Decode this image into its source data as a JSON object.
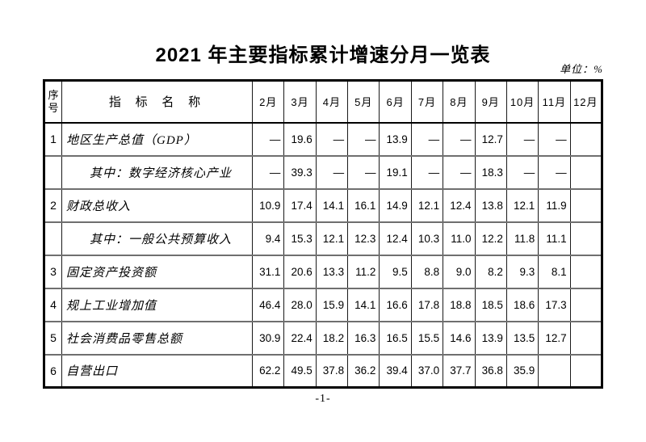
{
  "page": {
    "title": "2021 年主要指标累计增速分月一览表",
    "unit_label": "单位：%",
    "page_number": "-1-"
  },
  "table": {
    "headers": {
      "serial": "序号",
      "indicator": "指 标 名 称",
      "months": [
        "2月",
        "3月",
        "4月",
        "5月",
        "6月",
        "7月",
        "8月",
        "9月",
        "10月",
        "11月",
        "12月"
      ]
    },
    "rows": [
      {
        "no": "1",
        "name": "地区生产总值（GDP）",
        "indent": false,
        "values": [
          "—",
          "19.6",
          "—",
          "—",
          "13.9",
          "—",
          "—",
          "12.7",
          "—",
          "—",
          ""
        ]
      },
      {
        "no": "",
        "name": "其中：数字经济核心产业",
        "indent": true,
        "values": [
          "—",
          "39.3",
          "—",
          "—",
          "19.1",
          "—",
          "—",
          "18.3",
          "—",
          "—",
          ""
        ]
      },
      {
        "no": "2",
        "name": "财政总收入",
        "indent": false,
        "values": [
          "10.9",
          "17.4",
          "14.1",
          "16.1",
          "14.9",
          "12.1",
          "12.4",
          "13.8",
          "12.1",
          "11.9",
          ""
        ]
      },
      {
        "no": "",
        "name": "其中：一般公共预算收入",
        "indent": true,
        "values": [
          "9.4",
          "15.3",
          "12.1",
          "12.3",
          "12.4",
          "10.3",
          "11.0",
          "12.2",
          "11.8",
          "11.1",
          ""
        ]
      },
      {
        "no": "3",
        "name": "固定资产投资额",
        "indent": false,
        "values": [
          "31.1",
          "20.6",
          "13.3",
          "11.2",
          "9.5",
          "8.8",
          "9.0",
          "8.2",
          "9.3",
          "8.1",
          ""
        ]
      },
      {
        "no": "4",
        "name": "规上工业增加值",
        "indent": false,
        "values": [
          "46.4",
          "28.0",
          "15.9",
          "14.1",
          "16.6",
          "17.8",
          "18.8",
          "18.5",
          "18.6",
          "17.3",
          ""
        ]
      },
      {
        "no": "5",
        "name": "社会消费品零售总额",
        "indent": false,
        "values": [
          "30.9",
          "22.4",
          "18.2",
          "16.3",
          "16.5",
          "15.5",
          "14.6",
          "13.9",
          "13.5",
          "12.7",
          ""
        ]
      },
      {
        "no": "6",
        "name": "自营出口",
        "indent": false,
        "values": [
          "62.2",
          "49.5",
          "37.8",
          "36.2",
          "39.4",
          "37.0",
          "37.7",
          "36.8",
          "35.9",
          "",
          ""
        ]
      }
    ]
  }
}
